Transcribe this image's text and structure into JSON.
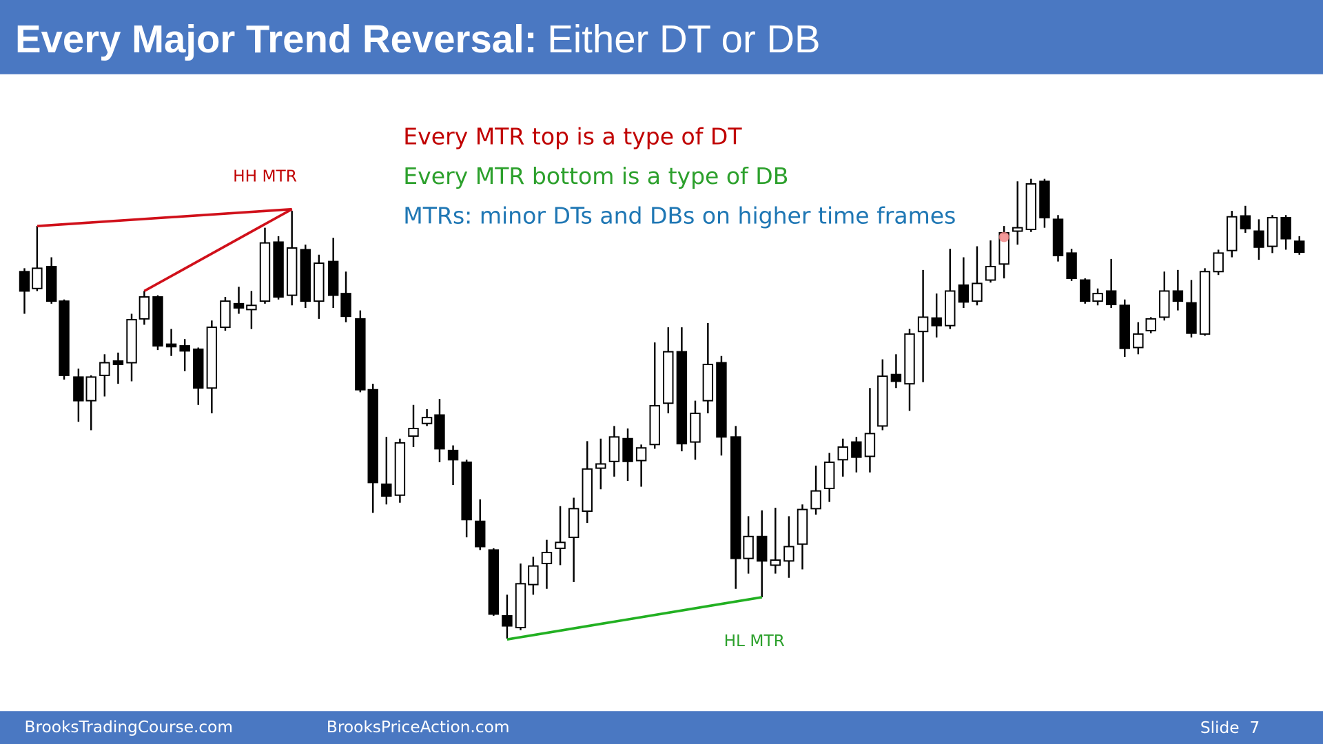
{
  "header": {
    "title_bold": "Every Major Trend Reversal:",
    "title_rest": "Either DT or DB"
  },
  "notes": [
    "Every MTR top is a type of DT",
    "Every MTR bottom is a type of DB",
    "MTRs: minor DTs and DBs on higher time frames"
  ],
  "labels": {
    "top": "HH MTR",
    "bottom": "HL MTR"
  },
  "footer": {
    "left": "BrooksTradingCourse.com",
    "middle": "BrooksPriceAction.com",
    "slide": "Slide  7"
  }
}
